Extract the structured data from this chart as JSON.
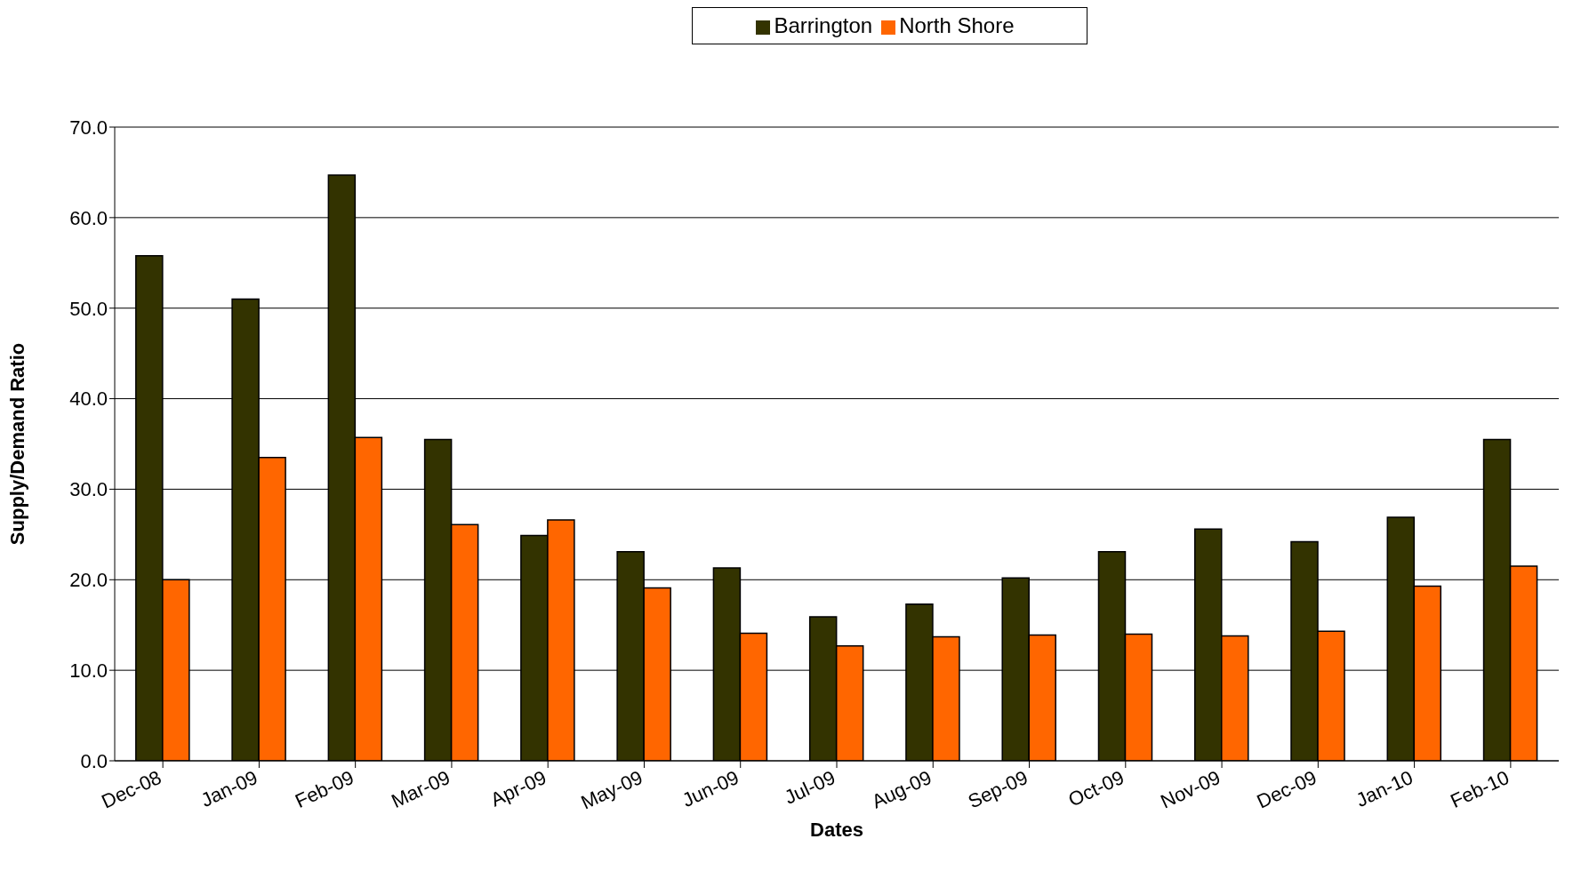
{
  "chart_data": {
    "type": "bar",
    "xlabel": "Dates",
    "ylabel": "Supply/Demand Ratio",
    "categories": [
      "Dec-08",
      "Jan-09",
      "Feb-09",
      "Mar-09",
      "Apr-09",
      "May-09",
      "Jun-09",
      "Jul-09",
      "Aug-09",
      "Sep-09",
      "Oct-09",
      "Nov-09",
      "Dec-09",
      "Jan-10",
      "Feb-10"
    ],
    "series": [
      {
        "name": "Barrington",
        "color": "#333300",
        "values": [
          55.8,
          51.0,
          64.7,
          35.5,
          24.9,
          23.1,
          21.3,
          15.9,
          17.3,
          20.2,
          23.1,
          25.6,
          24.2,
          26.9,
          35.5
        ]
      },
      {
        "name": "North Shore",
        "color": "#ff6600",
        "values": [
          20.0,
          33.5,
          35.7,
          26.1,
          26.6,
          19.1,
          14.1,
          12.7,
          13.7,
          13.9,
          14.0,
          13.8,
          14.3,
          19.3,
          21.5
        ]
      }
    ],
    "ylim": [
      0,
      70
    ],
    "yticks": [
      {
        "value": 0,
        "label": "0.0"
      },
      {
        "value": 10,
        "label": "10.0"
      },
      {
        "value": 20,
        "label": "20.0"
      },
      {
        "value": 30,
        "label": "30.0"
      },
      {
        "value": 40,
        "label": "40.0"
      },
      {
        "value": 50,
        "label": "50.0"
      },
      {
        "value": 60,
        "label": "60.0"
      },
      {
        "value": 70,
        "label": "70.0"
      }
    ],
    "grid": "y",
    "legend": "top"
  }
}
